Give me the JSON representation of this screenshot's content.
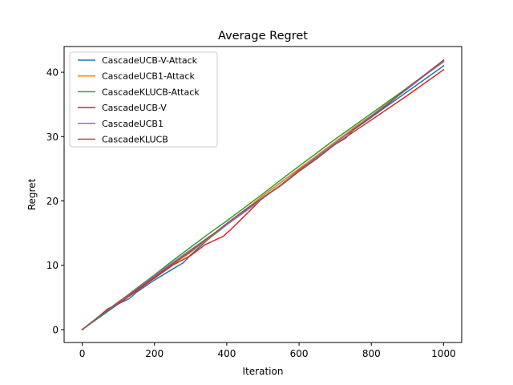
{
  "chart_data": {
    "type": "line",
    "title": "Average Regret",
    "xlabel": "Iteration",
    "ylabel": "Regret",
    "xlim": [
      -50,
      1050
    ],
    "ylim": [
      -2,
      44
    ],
    "xticks": [
      0,
      200,
      400,
      600,
      800,
      1000
    ],
    "yticks": [
      0,
      10,
      20,
      30,
      40
    ],
    "grid": false,
    "legend_position": "top-left",
    "series": [
      {
        "name": "CascadeUCB-V-Attack",
        "color": "#1f77b4",
        "points": [
          [
            0,
            0
          ],
          [
            50,
            2.0
          ],
          [
            100,
            4.0
          ],
          [
            130,
            4.8
          ],
          [
            150,
            5.8
          ],
          [
            200,
            7.7
          ],
          [
            250,
            9.4
          ],
          [
            280,
            10.4
          ],
          [
            300,
            11.6
          ],
          [
            350,
            14.1
          ],
          [
            400,
            16.3
          ],
          [
            450,
            18.5
          ],
          [
            500,
            20.8
          ],
          [
            550,
            22.9
          ],
          [
            600,
            25.0
          ],
          [
            650,
            27.0
          ],
          [
            700,
            29.1
          ],
          [
            750,
            31.0
          ],
          [
            800,
            33.0
          ],
          [
            850,
            35.0
          ],
          [
            900,
            37.0
          ],
          [
            950,
            39.0
          ],
          [
            1000,
            41.0
          ]
        ]
      },
      {
        "name": "CascadeUCB1-Attack",
        "color": "#ff7f0e",
        "points": [
          [
            0,
            0
          ],
          [
            50,
            2.1
          ],
          [
            100,
            4.3
          ],
          [
            150,
            6.2
          ],
          [
            200,
            8.2
          ],
          [
            250,
            10.1
          ],
          [
            300,
            12.0
          ],
          [
            350,
            14.2
          ],
          [
            400,
            16.4
          ],
          [
            450,
            18.6
          ],
          [
            500,
            20.8
          ],
          [
            550,
            22.9
          ],
          [
            600,
            25.0
          ],
          [
            650,
            27.1
          ],
          [
            700,
            29.2
          ],
          [
            750,
            31.3
          ],
          [
            800,
            33.3
          ],
          [
            850,
            35.4
          ],
          [
            900,
            37.5
          ],
          [
            950,
            39.6
          ],
          [
            1000,
            41.6
          ]
        ]
      },
      {
        "name": "CascadeKLUCB-Attack",
        "color": "#2ca02c",
        "points": [
          [
            0,
            0
          ],
          [
            50,
            2.1
          ],
          [
            100,
            4.2
          ],
          [
            150,
            6.4
          ],
          [
            200,
            8.5
          ],
          [
            250,
            10.7
          ],
          [
            300,
            12.8
          ],
          [
            350,
            14.9
          ],
          [
            400,
            16.9
          ],
          [
            450,
            19.0
          ],
          [
            500,
            21.1
          ],
          [
            550,
            23.3
          ],
          [
            600,
            25.4
          ],
          [
            650,
            27.5
          ],
          [
            700,
            29.6
          ],
          [
            750,
            31.6
          ],
          [
            800,
            33.6
          ],
          [
            850,
            35.6
          ],
          [
            900,
            37.6
          ],
          [
            950,
            39.7
          ],
          [
            1000,
            41.8
          ]
        ]
      },
      {
        "name": "CascadeUCB-V",
        "color": "#d62728",
        "points": [
          [
            0,
            0
          ],
          [
            30,
            1.3
          ],
          [
            70,
            3.2
          ],
          [
            100,
            4.0
          ],
          [
            150,
            6.0
          ],
          [
            200,
            8.0
          ],
          [
            250,
            10.0
          ],
          [
            300,
            11.5
          ],
          [
            340,
            13.2
          ],
          [
            390,
            14.5
          ],
          [
            410,
            15.5
          ],
          [
            450,
            17.7
          ],
          [
            500,
            20.5
          ],
          [
            550,
            22.5
          ],
          [
            600,
            24.8
          ],
          [
            650,
            26.8
          ],
          [
            700,
            28.8
          ],
          [
            750,
            30.7
          ],
          [
            800,
            32.6
          ],
          [
            850,
            34.5
          ],
          [
            900,
            36.4
          ],
          [
            950,
            38.4
          ],
          [
            1000,
            40.4
          ]
        ]
      },
      {
        "name": "CascadeUCB1",
        "color": "#9467bd",
        "points": [
          [
            0,
            0
          ],
          [
            50,
            2.2
          ],
          [
            100,
            4.2
          ],
          [
            150,
            6.3
          ],
          [
            200,
            8.4
          ],
          [
            250,
            10.4
          ],
          [
            300,
            12.4
          ],
          [
            350,
            14.4
          ],
          [
            400,
            16.3
          ],
          [
            450,
            18.3
          ],
          [
            500,
            20.4
          ],
          [
            550,
            22.5
          ],
          [
            600,
            24.7
          ],
          [
            650,
            26.8
          ],
          [
            700,
            29.0
          ],
          [
            750,
            31.1
          ],
          [
            800,
            33.2
          ],
          [
            850,
            35.3
          ],
          [
            900,
            37.4
          ],
          [
            950,
            39.6
          ],
          [
            1000,
            41.7
          ]
        ]
      },
      {
        "name": "CascadeKLUCB",
        "color": "#8c564b",
        "points": [
          [
            0,
            0
          ],
          [
            50,
            2.2
          ],
          [
            100,
            4.3
          ],
          [
            150,
            6.2
          ],
          [
            200,
            8.2
          ],
          [
            250,
            10.2
          ],
          [
            300,
            12.2
          ],
          [
            350,
            14.3
          ],
          [
            400,
            16.5
          ],
          [
            450,
            18.6
          ],
          [
            500,
            20.5
          ],
          [
            550,
            22.4
          ],
          [
            600,
            24.6
          ],
          [
            650,
            26.6
          ],
          [
            700,
            28.8
          ],
          [
            730,
            29.8
          ],
          [
            750,
            31.1
          ],
          [
            800,
            33.1
          ],
          [
            850,
            35.2
          ],
          [
            900,
            37.6
          ],
          [
            950,
            39.7
          ],
          [
            1000,
            41.9
          ]
        ]
      }
    ]
  }
}
